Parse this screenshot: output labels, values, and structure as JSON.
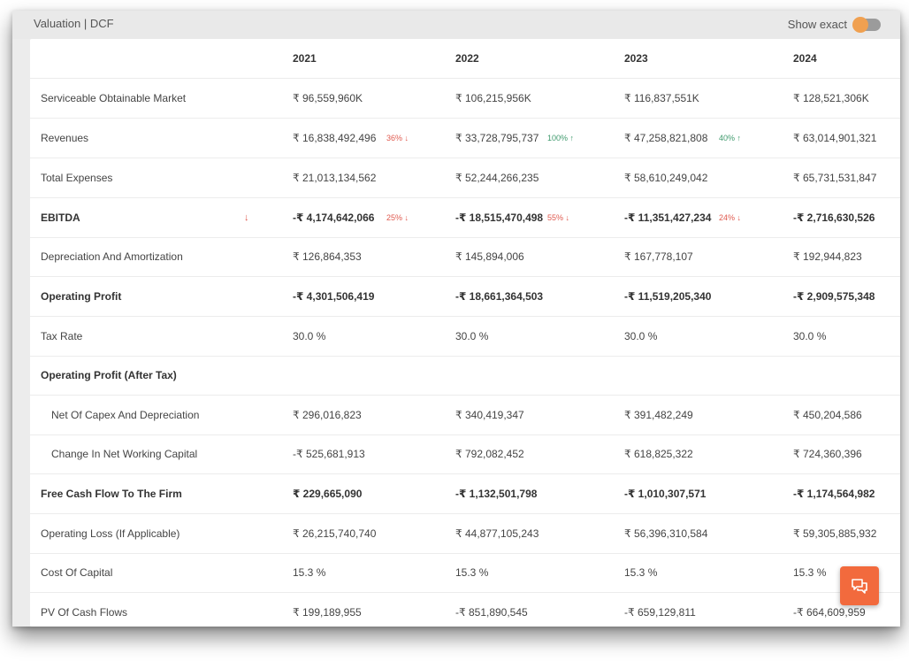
{
  "header": {
    "title": "Valuation | DCF",
    "toggle_label": "Show exact"
  },
  "columns": [
    "2021",
    "2022",
    "2023",
    "2024"
  ],
  "rows": [
    {
      "label": "Serviceable Obtainable Market",
      "values": [
        "₹ 96,559,960K",
        "₹ 106,215,956K",
        "₹ 116,837,551K",
        "₹ 128,521,306K"
      ]
    },
    {
      "label": "Revenues",
      "values": [
        "₹ 16,838,492,496",
        "₹ 33,728,795,737",
        "₹ 47,258,821,808",
        "₹ 63,014,901,321"
      ],
      "changes": [
        "36% ↓",
        "100% ↑",
        "40% ↑"
      ]
    },
    {
      "label": "Total Expenses",
      "values": [
        "₹ 21,013,134,562",
        "₹ 52,244,266,235",
        "₹ 58,610,249,042",
        "₹ 65,731,531,847"
      ]
    },
    {
      "label": "EBITDA",
      "label_arrow": "↓",
      "values": [
        "-₹ 4,174,642,066",
        "-₹ 18,515,470,498",
        "-₹ 11,351,427,234",
        "-₹ 2,716,630,526"
      ],
      "changes": [
        "25% ↓",
        "55% ↓",
        "24% ↓"
      ]
    },
    {
      "label": "Depreciation And Amortization",
      "values": [
        "₹ 126,864,353",
        "₹ 145,894,006",
        "₹ 167,778,107",
        "₹ 192,944,823"
      ]
    },
    {
      "label": "Operating Profit",
      "values": [
        "-₹ 4,301,506,419",
        "-₹ 18,661,364,503",
        "-₹ 11,519,205,340",
        "-₹ 2,909,575,348"
      ]
    },
    {
      "label": "Tax Rate",
      "values": [
        "30.0 %",
        "30.0 %",
        "30.0 %",
        "30.0 %"
      ]
    },
    {
      "label": "Operating Profit (After Tax)"
    },
    {
      "label": "Net Of Capex And Depreciation",
      "values": [
        "₹ 296,016,823",
        "₹ 340,419,347",
        "₹ 391,482,249",
        "₹ 450,204,586"
      ]
    },
    {
      "label": "Change In Net Working Capital",
      "values": [
        "-₹ 525,681,913",
        "₹ 792,082,452",
        "₹ 618,825,322",
        "₹ 724,360,396"
      ]
    },
    {
      "label": "Free Cash Flow To The Firm",
      "values": [
        "₹ 229,665,090",
        "-₹ 1,132,501,798",
        "-₹ 1,010,307,571",
        "-₹ 1,174,564,982"
      ]
    },
    {
      "label": "Operating Loss (If Applicable)",
      "values": [
        "₹ 26,215,740,740",
        "₹ 44,877,105,243",
        "₹ 56,396,310,584",
        "₹ 59,305,885,932"
      ]
    },
    {
      "label": "Cost Of Capital",
      "values": [
        "15.3 %",
        "15.3 %",
        "15.3 %",
        "15.3 %"
      ]
    },
    {
      "label": "PV Of Cash Flows",
      "values": [
        "₹ 199,189,955",
        "-₹ 851,890,545",
        "-₹ 659,129,811",
        "-₹ 664,609,959"
      ]
    }
  ],
  "colors": {
    "accent": "#f26a3d",
    "negative": "#e05a4f",
    "positive": "#3f9a6d"
  },
  "icons": {
    "fab": "chat-icon"
  }
}
